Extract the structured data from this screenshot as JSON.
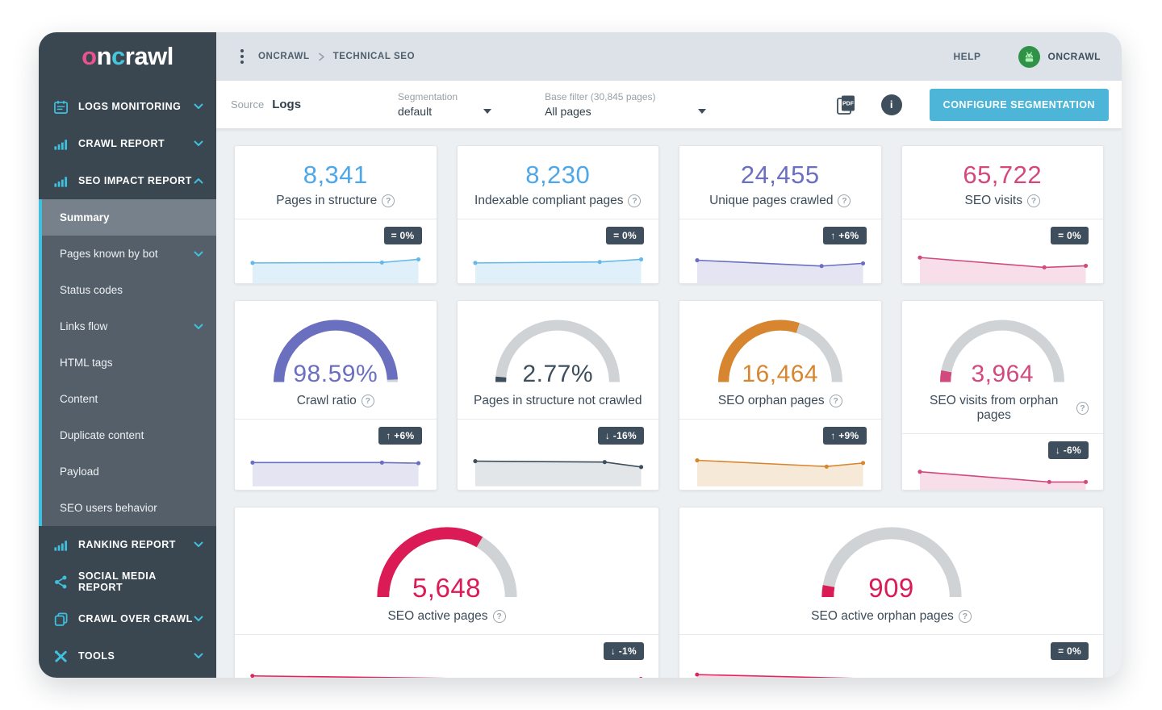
{
  "sidebar": {
    "logo_text": "oncrawl",
    "items": [
      {
        "label": "LOGS MONITORING",
        "icon": "calendar-icon",
        "chevron": "down"
      },
      {
        "label": "CRAWL REPORT",
        "icon": "bar-chart-icon",
        "chevron": "down"
      },
      {
        "label": "SEO IMPACT REPORT",
        "icon": "bar-chart-icon",
        "chevron": "up",
        "children": [
          {
            "label": "Summary",
            "active": true
          },
          {
            "label": "Pages known by bot",
            "chevron": "down"
          },
          {
            "label": "Status codes"
          },
          {
            "label": "Links flow",
            "chevron": "down"
          },
          {
            "label": "HTML tags"
          },
          {
            "label": "Content"
          },
          {
            "label": "Duplicate content"
          },
          {
            "label": "Payload"
          },
          {
            "label": "SEO users behavior"
          }
        ]
      },
      {
        "label": "RANKING REPORT",
        "icon": "bar-chart-icon",
        "chevron": "down"
      },
      {
        "label": "SOCIAL MEDIA REPORT",
        "icon": "share-icon"
      },
      {
        "label": "CRAWL OVER CRAWL",
        "icon": "copy-icon",
        "chevron": "down"
      },
      {
        "label": "TOOLS",
        "icon": "tools-icon",
        "chevron": "down"
      }
    ]
  },
  "header": {
    "breadcrumb": [
      "ONCRAWL",
      "TECHNICAL SEO"
    ],
    "help_label": "HELP",
    "user_label": "ONCRAWL"
  },
  "filter_bar": {
    "source_label": "Source",
    "source_value": "Logs",
    "segmentation_label": "Segmentation",
    "segmentation_value": "default",
    "base_filter_label": "Base filter (30,845 pages)",
    "base_filter_value": "All pages",
    "configure_button": "CONFIGURE SEGMENTATION"
  },
  "colors": {
    "accent_cyan": "#3fc0de",
    "button_blue": "#4cb5d8",
    "badge_bg": "#3e4e5c",
    "blue": "#4da7e8",
    "purple": "#6a6fc0",
    "rose": "#d2497e",
    "crimson": "#da1b55",
    "orange": "#d7862f",
    "dark_slate": "#3e4e5c",
    "gauge_track": "#cfd3d6"
  },
  "cards": {
    "row1": [
      {
        "type": "number",
        "value": "8,341",
        "label": "Pages in structure",
        "help": true,
        "badge": "= 0%",
        "color": "#4da7e8",
        "spark": {
          "line": "#64b9e9",
          "fill": "#e0f0fa",
          "points": [
            [
              0,
              0.42
            ],
            [
              0.78,
              0.4
            ],
            [
              1,
              0.26
            ]
          ]
        }
      },
      {
        "type": "number",
        "value": "8,230",
        "label": "Indexable compliant pages",
        "help": true,
        "badge": "= 0%",
        "color": "#4da7e8",
        "spark": {
          "line": "#64b9e9",
          "fill": "#e0f0fa",
          "points": [
            [
              0,
              0.42
            ],
            [
              0.75,
              0.38
            ],
            [
              1,
              0.26
            ]
          ]
        }
      },
      {
        "type": "number",
        "value": "24,455",
        "label": "Unique pages crawled",
        "help": true,
        "badge": "↑ +6%",
        "color": "#6a6fc0",
        "spark": {
          "line": "#6a6fc0",
          "fill": "#e4e4f3",
          "points": [
            [
              0,
              0.3
            ],
            [
              0.75,
              0.56
            ],
            [
              1,
              0.44
            ]
          ]
        }
      },
      {
        "type": "number",
        "value": "65,722",
        "label": "SEO visits",
        "help": true,
        "badge": "= 0%",
        "color": "#d2497e",
        "spark": {
          "line": "#d2497e",
          "fill": "#f8dee8",
          "points": [
            [
              0,
              0.18
            ],
            [
              0.75,
              0.62
            ],
            [
              1,
              0.55
            ]
          ]
        }
      }
    ],
    "row2": [
      {
        "type": "gauge",
        "value": "98.59%",
        "label": "Crawl ratio",
        "help": true,
        "badge": "↑ +6%",
        "color": "#6a6fc0",
        "gauge_percent": 98.59,
        "spark": {
          "line": "#6a6fc0",
          "fill": "#e4e4f3",
          "points": [
            [
              0,
              0.4
            ],
            [
              0.78,
              0.4
            ],
            [
              1,
              0.43
            ]
          ]
        }
      },
      {
        "type": "gauge",
        "value": "2.77%",
        "label": "Pages in structure not crawled",
        "help": false,
        "badge": "↓ -16%",
        "color": "#3e4e5c",
        "gauge_percent": 2.77,
        "spark": {
          "line": "#3e4e5c",
          "fill": "#e3e6e9",
          "points": [
            [
              0,
              0.34
            ],
            [
              0.78,
              0.38
            ],
            [
              1,
              0.6
            ]
          ]
        }
      },
      {
        "type": "gauge",
        "value": "16,464",
        "label": "SEO orphan pages",
        "help": true,
        "badge": "↑ +9%",
        "color": "#d7862f",
        "gauge_percent": 60,
        "spark": {
          "line": "#d7862f",
          "fill": "#f7e9d7",
          "points": [
            [
              0,
              0.3
            ],
            [
              0.78,
              0.58
            ],
            [
              1,
              0.42
            ]
          ]
        }
      },
      {
        "type": "gauge",
        "value": "3,964",
        "label": "SEO visits from orphan pages",
        "help": true,
        "badge": "↓ -6%",
        "color": "#d2497e",
        "gauge_percent": 6,
        "spark": {
          "line": "#d2497e",
          "fill": "#f8dee8",
          "points": [
            [
              0,
              0.16
            ],
            [
              0.78,
              0.62
            ],
            [
              1,
              0.62
            ]
          ]
        }
      }
    ],
    "row3": [
      {
        "type": "gauge",
        "value": "5,648",
        "label": "SEO active pages",
        "help": true,
        "badge": "↓ -1%",
        "color": "#da1b55",
        "gauge_percent": 67,
        "spark": {
          "line": "#e0245e",
          "fill": "#f9d9e3",
          "points": [
            [
              0,
              0.26
            ],
            [
              0.78,
              0.44
            ],
            [
              1,
              0.4
            ]
          ]
        }
      },
      {
        "type": "gauge",
        "value": "909",
        "label": "SEO active orphan pages",
        "help": true,
        "badge": "= 0%",
        "color": "#da1b55",
        "gauge_percent": 5.5,
        "spark": {
          "line": "#e0245e",
          "fill": "#f9d9e3",
          "points": [
            [
              0,
              0.2
            ],
            [
              0.78,
              0.54
            ],
            [
              1,
              0.52
            ]
          ]
        }
      }
    ]
  }
}
